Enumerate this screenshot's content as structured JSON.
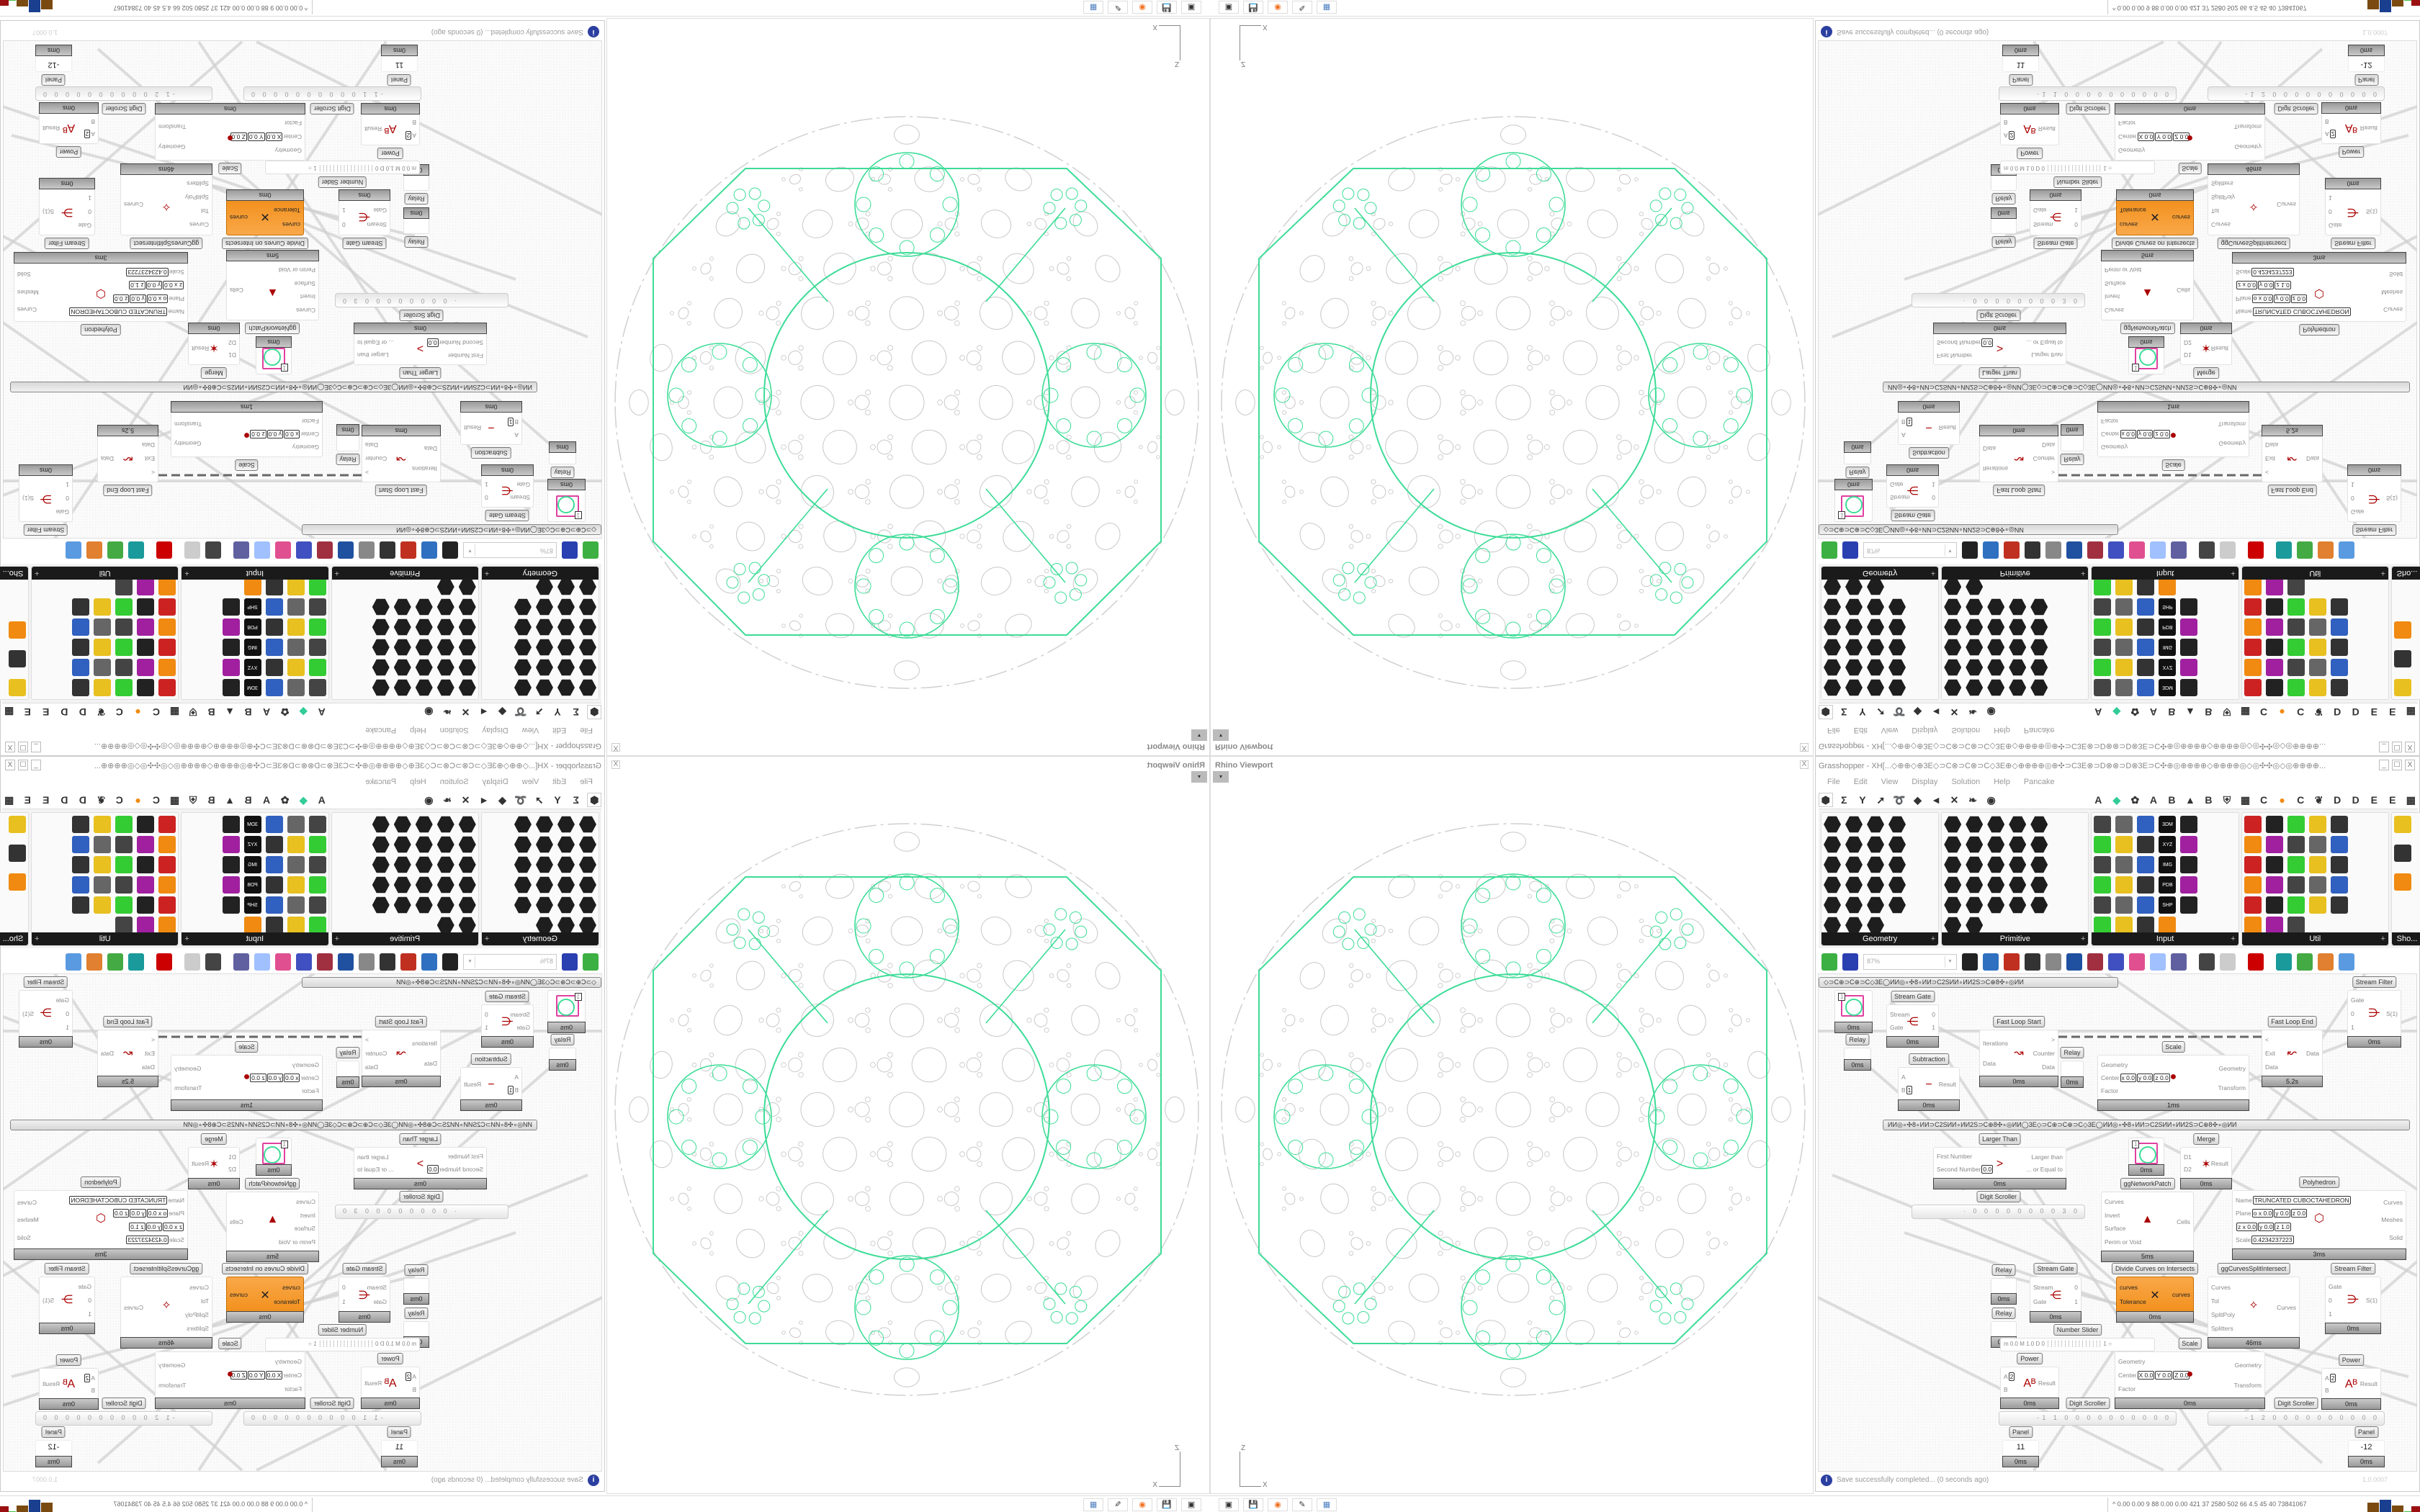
{
  "colors": {
    "accent_orange": "#f08a10",
    "viewport_curve_green": "#3ddc97",
    "viewport_gray": "#c8c8c8",
    "param_pink": "#e040a0"
  },
  "viewport": {
    "title": "Rhino Viewport",
    "close_label": "X",
    "dropdown_icon": "▾",
    "axis_z": "Z",
    "axis_x": "X"
  },
  "grasshopper": {
    "title": "Grasshopper - XH[...◇⊕⊕◇⊕3E◇⊃C⊗⊃C⊗⊃C◇3E⊕◇⊕⊕⊕⊕◎⊕✣⊃C3E⊗⊃D⊗⊗⊃D⊗3E⊃C✣⊕◎⊕⊕⊕⊕◇⊕⊕⊕⊕◎◇◎✣✣◎◇◎⊕⊕⊕⊕...",
    "window_buttons": [
      "_",
      "☐",
      "X"
    ],
    "menu": [
      "File",
      "Edit",
      "View",
      "Display",
      "Solution",
      "Help",
      "Pancake"
    ],
    "tab_icons": [
      "⬢",
      "Σ",
      "Y",
      "➚",
      "➰",
      "◆",
      "◄",
      "✕",
      "❧",
      "◉"
    ],
    "tab_letters": [
      "A",
      "A",
      "B",
      "B",
      "C",
      "C",
      "D",
      "D",
      "E",
      "E"
    ],
    "ribbon_panels": [
      {
        "name": "Geometry",
        "more": "+"
      },
      {
        "name": "Primitive",
        "more": "+"
      },
      {
        "name": "Input",
        "more": "+"
      },
      {
        "name": "Util",
        "more": "+"
      },
      {
        "name": "Sho..."
      }
    ],
    "input_icon_texts": [
      "3DM",
      "XYZ",
      "IMG",
      "PDB",
      "SHP",
      "AUG 20",
      "ID"
    ],
    "zoom": "87%",
    "status": "Save successfully completed... (0 seconds ago)",
    "status_icon": "info-icon",
    "version": "1.0.0007"
  },
  "canvas": {
    "groups": [
      "◇⊃C⊕⊃C⊕⊃C◇3E◯ИИ◎∘✣8∘ИИ⊃C2SИИ∘ИИ2S⊃C⊕8✣∘◎ИИ",
      "ИИ◎∘✣8∘ИИ⊃C2SИИ∘ИИ2S⊃C⊕8✣∘◎ИИ◯3E◇⊃C⊕⊃C⊕⊃C◇3E◯ИИ◎∘✣8∘ИИ⊃C2SИИ∘ИИ2S⊃C⊕8✣∘◎ИИ"
    ],
    "nodes": [
      {
        "kind": "param",
        "badge": "1",
        "time": "0ms"
      },
      {
        "label": "Stream Gate",
        "inputs": [
          "Stream",
          "Gate"
        ],
        "outputs": [
          "0",
          "1"
        ],
        "time": "0ms"
      },
      {
        "kind": "relay",
        "label": "Relay",
        "time": "0ms"
      },
      {
        "label": "Subtraction",
        "inputs": [
          "A",
          {
            "name": "B",
            "values": [
              "1"
            ]
          }
        ],
        "outputs": [
          "Result"
        ],
        "time": "0ms"
      },
      {
        "label": "Fast Loop Start",
        "inputs": [
          "Iterations",
          "Data"
        ],
        "outputs": [
          ">",
          "Counter",
          "Data"
        ],
        "time": "0ms"
      },
      {
        "kind": "relay",
        "label": "Relay",
        "time": "0ms"
      },
      {
        "label": "Scale",
        "inputs": [
          "Geometry",
          {
            "name": "Center",
            "values": [
              "x 0.0",
              "y 0.0",
              "z 0.0"
            ]
          },
          "Factor"
        ],
        "outputs": [
          "Geometry",
          "Transform"
        ],
        "time": "1ms"
      },
      {
        "label": "Fast Loop End",
        "inputs": [
          "<",
          "Exit",
          "Data"
        ],
        "outputs": [
          "Data"
        ],
        "time": "5.2s"
      },
      {
        "label": "Stream Filter",
        "inputs": [
          "Gate",
          "0",
          "1"
        ],
        "outputs": [
          "S(1)"
        ],
        "time": "0ms"
      },
      {
        "label": "Larger Than",
        "inputs": [
          "First Number",
          {
            "name": "Second Number",
            "values": [
              "0.0"
            ]
          }
        ],
        "outputs": [
          "Larger than",
          "... or Equal to"
        ],
        "time": "0ms"
      },
      {
        "kind": "scroller",
        "label": "Digit Scroller",
        "value": "· 0 0 0 0 0 0 0 0 3 0"
      },
      {
        "kind": "param",
        "badge": "1",
        "time": "0ms"
      },
      {
        "label": "Merge",
        "inputs": [
          "D1",
          "D2"
        ],
        "outputs": [
          "Result"
        ],
        "time": "0ms"
      },
      {
        "label": "ggNetworkPatch",
        "inputs": [
          "Curves",
          "Invert",
          "Surface",
          "Perim or Void"
        ],
        "outputs": [
          "Cells"
        ],
        "time": "5ms"
      },
      {
        "label": "Polyhedron",
        "inputs": [
          {
            "name": "Name",
            "values": [
              "TRUNCATED CUBOCTAHEDRON"
            ]
          },
          {
            "name": "Plane",
            "values": [
              "o x 0.0",
              "y 0.0",
              "z 0.0"
            ]
          },
          {
            "name": "",
            "values": [
              "z x 0.0",
              "y 0.0",
              "z 1.0"
            ]
          },
          {
            "name": "Scale",
            "values": [
              "0.4234237223"
            ]
          }
        ],
        "outputs": [
          "Curves",
          "Meshes",
          "Solid"
        ],
        "time": "3ms"
      },
      {
        "kind": "relay",
        "label": "Relay",
        "time": "0ms"
      },
      {
        "label": "Stream Gate",
        "inputs": [
          "Stream",
          "Gate"
        ],
        "outputs": [
          "0",
          "1"
        ],
        "time": "0ms"
      },
      {
        "label": "Divide Curves on Intersects",
        "inputs": [
          "curves",
          "Tolerance"
        ],
        "outputs": [
          "curves"
        ],
        "time": "0ms",
        "orange": true
      },
      {
        "label": "ggCurvesSplitIntersect",
        "inputs": [
          "Curves",
          "Tol",
          "SplitPoly",
          "Splitters"
        ],
        "outputs": [
          "Curves"
        ],
        "time": "46ms"
      },
      {
        "label": "Stream Filter",
        "inputs": [
          "Gate",
          "0",
          "1"
        ],
        "outputs": [
          "S(1)"
        ],
        "time": "0ms"
      },
      {
        "kind": "relay",
        "label": "Relay",
        "time": "0ms"
      },
      {
        "kind": "slider",
        "label": "Number Slider",
        "value": "m 0.0  M 1.0  D 0   ┊┊┊┊┊┊┊┊┊┊┊┊┊┊┊┊ 1 ○"
      },
      {
        "label": "Power",
        "inputs": [
          {
            "name": "A",
            "values": [
              "2"
            ]
          },
          "B"
        ],
        "outputs": [
          "Result"
        ],
        "time": "0ms"
      },
      {
        "label": "Scale",
        "inputs": [
          "Geometry",
          {
            "name": "Center",
            "values": [
              "X 0.0",
              "Y 0.0",
              "Z 0.0"
            ]
          },
          "Factor"
        ],
        "outputs": [
          "Geometry",
          "Transform"
        ],
        "time": "0ms"
      },
      {
        "label": "Power",
        "inputs": [
          {
            "name": "A",
            "values": [
              "2"
            ]
          },
          "B"
        ],
        "outputs": [
          "Result"
        ],
        "time": "0ms"
      },
      {
        "kind": "scroller",
        "label": "Digit Scroller",
        "value": "-1 1 0 0 0 0 0 0 0 0 0 0"
      },
      {
        "kind": "scroller",
        "label": "Digit Scroller",
        "value": "-1 2 0 0 0 0 0 0 0 0 0 0"
      },
      {
        "kind": "panel",
        "label": "Panel",
        "value": "11",
        "time": "0ms"
      },
      {
        "kind": "panel",
        "label": "Panel",
        "value": "-12",
        "time": "0ms"
      }
    ]
  },
  "taskbar": {
    "apps": [
      "terminal-icon",
      "floppy-64-icon",
      "firefox-icon",
      "inkscape-icon",
      "calculator-icon"
    ],
    "app_glyphs": [
      "▣",
      "💾",
      "◉",
      "✎",
      "▦"
    ],
    "stats_prefix": "^",
    "stats": "0.00 0.00   9    88   0.00 0.00 421   37  2580 502   66   4.5   45   40  73841067",
    "bar_colors": [
      "#e0d040",
      "#7a4a10",
      "#1a3f8f",
      "#7a4a10",
      "#40c040",
      "#9a1010"
    ]
  }
}
